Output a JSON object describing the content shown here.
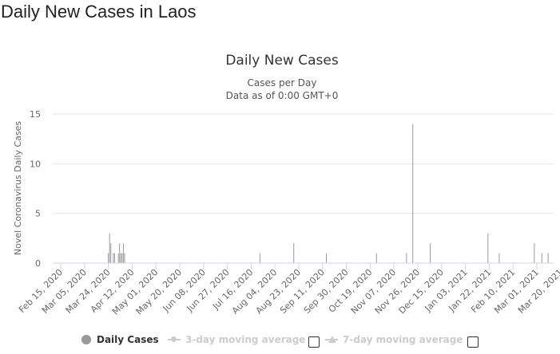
{
  "page": {
    "heading": "Daily New Cases in Laos"
  },
  "chart_data": {
    "type": "bar",
    "title": "Daily New Cases",
    "subtitle_line1": "Cases per Day",
    "subtitle_line2": "Data as of 0:00 GMT+0",
    "ylabel": "Novel Coronavirus Daily Cases",
    "ylim": [
      0,
      15
    ],
    "y_ticks": [
      0,
      5,
      10,
      15
    ],
    "x_start": "2020-02-15",
    "x_end": "2021-03-28",
    "x_tick_labels": [
      "Feb 15, 2020",
      "Mar 05, 2020",
      "Mar 24, 2020",
      "Apr 12, 2020",
      "May 01, 2020",
      "May 20, 2020",
      "Jun 08, 2020",
      "Jun 27, 2020",
      "Jul 16, 2020",
      "Aug 04, 2020",
      "Aug 23, 2020",
      "Sep 11, 2020",
      "Sep 30, 2020",
      "Oct 19, 2020",
      "Nov 07, 2020",
      "Nov 26, 2020",
      "Dec 15, 2020",
      "Jan 03, 2021",
      "Jan 22, 2021",
      "Feb 10, 2021",
      "Mar 01, 2021",
      "Mar 20, 2021"
    ],
    "series": [
      {
        "name": "Daily Cases",
        "color": "#999999",
        "points": [
          {
            "x": "2020-03-24",
            "y": 1
          },
          {
            "x": "2020-03-25",
            "y": 3
          },
          {
            "x": "2020-03-26",
            "y": 2
          },
          {
            "x": "2020-03-28",
            "y": 1
          },
          {
            "x": "2020-03-29",
            "y": 1
          },
          {
            "x": "2020-04-01",
            "y": 1
          },
          {
            "x": "2020-04-02",
            "y": 2
          },
          {
            "x": "2020-04-03",
            "y": 1
          },
          {
            "x": "2020-04-04",
            "y": 1
          },
          {
            "x": "2020-04-05",
            "y": 2
          },
          {
            "x": "2020-04-06",
            "y": 1
          },
          {
            "x": "2020-07-23",
            "y": 1
          },
          {
            "x": "2020-08-19",
            "y": 2
          },
          {
            "x": "2020-09-14",
            "y": 1
          },
          {
            "x": "2020-10-24",
            "y": 1
          },
          {
            "x": "2020-11-17",
            "y": 1
          },
          {
            "x": "2020-11-22",
            "y": 14
          },
          {
            "x": "2020-12-06",
            "y": 2
          },
          {
            "x": "2021-01-21",
            "y": 3
          },
          {
            "x": "2021-01-30",
            "y": 1
          },
          {
            "x": "2021-02-27",
            "y": 2
          },
          {
            "x": "2021-03-05",
            "y": 1
          },
          {
            "x": "2021-03-10",
            "y": 1
          }
        ]
      }
    ],
    "legend": {
      "placement": "bottom",
      "items": [
        {
          "label": "Daily Cases",
          "active": true,
          "color": "#999999"
        },
        {
          "label": "3-day moving average",
          "active": false,
          "color": "#cccccc"
        },
        {
          "label": "7-day moving average",
          "active": false,
          "color": "#cccccc"
        }
      ]
    }
  }
}
